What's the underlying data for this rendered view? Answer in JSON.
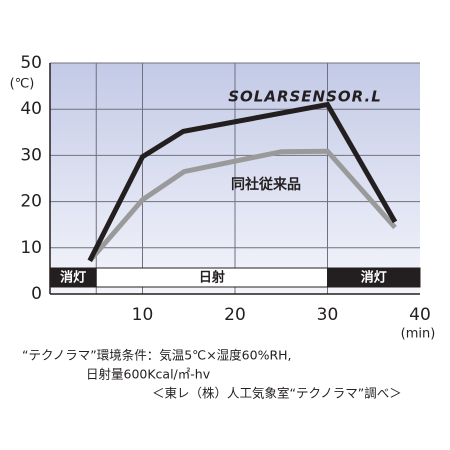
{
  "chart_data": {
    "type": "line",
    "y_label": "(℃)",
    "x_label": "(min)",
    "xlim": [
      0,
      40
    ],
    "ylim": [
      0,
      50
    ],
    "xticks": [
      10,
      20,
      30,
      40
    ],
    "yticks": [
      0,
      10,
      20,
      30,
      40,
      50
    ],
    "grid": true,
    "series": [
      {
        "name": "SOLARSENSOR.L",
        "color": "#231f20",
        "x": [
          4.3,
          10,
          14.4,
          30,
          37.3
        ],
        "values": [
          7.2,
          29.7,
          35.2,
          41,
          15.6
        ]
      },
      {
        "name": "同社従来品",
        "color": "#9a9a9a",
        "x": [
          4.3,
          10,
          14.5,
          25,
          30,
          37.3
        ],
        "values": [
          7.2,
          20.4,
          26.5,
          30.8,
          30.9,
          14.4
        ]
      }
    ],
    "bands": [
      {
        "label": "消灯",
        "start": 0,
        "end": 5,
        "color": "#231f20"
      },
      {
        "label": "日射",
        "start": 5,
        "end": 30,
        "color": "#ffffff"
      },
      {
        "label": "消灯",
        "start": 30,
        "end": 40,
        "color": "#231f20"
      }
    ],
    "notes": [
      "“テクノラマ”環境条件：気温5℃×湿度60%RH,",
      "日射量600Kcal/㎡-hv",
      "＜東レ（株）人工気象室“テクノラマ”調べ＞"
    ]
  }
}
